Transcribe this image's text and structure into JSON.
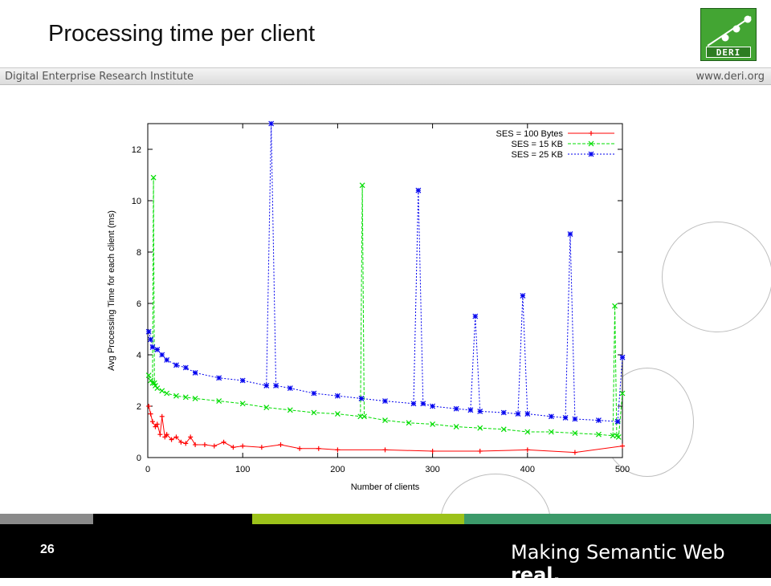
{
  "slide": {
    "title": "Processing time per client",
    "banner_left": "Digital Enterprise Research Institute",
    "banner_right": "www.deri.org",
    "logo_text": "DERI",
    "page_number": "26",
    "slogan_main": "Making Semantic Web ",
    "slogan_bold": "real."
  },
  "colors": {
    "stripe_gray": "#8a8a8a",
    "stripe_black": "#000000",
    "stripe_lime": "#9cc21a",
    "stripe_green": "#3c9a6a",
    "logo_green": "#43a533"
  },
  "chart_data": {
    "type": "line",
    "title": "",
    "xlabel": "Number of clients",
    "ylabel": "Avg Processing Time for each client (ms)",
    "xlim": [
      0,
      500
    ],
    "ylim": [
      0,
      13
    ],
    "xticks": [
      0,
      100,
      200,
      300,
      400,
      500
    ],
    "yticks": [
      0,
      2,
      4,
      6,
      8,
      10,
      12
    ],
    "grid": false,
    "legend_position": "top-right",
    "series": [
      {
        "name": "SES = 100 Bytes",
        "color": "#ff0000",
        "marker": "+",
        "x": [
          1,
          3,
          5,
          8,
          10,
          13,
          15,
          18,
          20,
          25,
          30,
          35,
          40,
          45,
          50,
          60,
          70,
          80,
          90,
          100,
          120,
          140,
          160,
          180,
          200,
          250,
          300,
          350,
          400,
          450,
          500
        ],
        "y": [
          2.0,
          1.7,
          1.4,
          1.2,
          1.3,
          0.9,
          1.6,
          0.8,
          0.9,
          0.7,
          0.8,
          0.6,
          0.55,
          0.8,
          0.5,
          0.5,
          0.45,
          0.6,
          0.4,
          0.45,
          0.4,
          0.5,
          0.35,
          0.35,
          0.3,
          0.3,
          0.25,
          0.25,
          0.3,
          0.2,
          0.45
        ]
      },
      {
        "name": "SES = 15 KB",
        "color": "#00dd00",
        "marker": "x",
        "x": [
          1,
          3,
          5,
          6,
          7,
          8,
          10,
          15,
          20,
          30,
          40,
          50,
          75,
          100,
          125,
          150,
          175,
          200,
          224,
          226,
          228,
          250,
          275,
          300,
          325,
          350,
          375,
          400,
          425,
          450,
          475,
          490,
          492,
          494,
          496,
          500
        ],
        "y": [
          3.2,
          3.0,
          2.9,
          10.9,
          2.9,
          2.8,
          2.7,
          2.6,
          2.5,
          2.4,
          2.35,
          2.3,
          2.2,
          2.1,
          1.95,
          1.85,
          1.75,
          1.7,
          1.6,
          10.6,
          1.6,
          1.45,
          1.35,
          1.3,
          1.2,
          1.15,
          1.1,
          1.0,
          1.0,
          0.95,
          0.9,
          0.85,
          5.9,
          0.85,
          0.8,
          2.5
        ]
      },
      {
        "name": "SES = 25 KB",
        "color": "#0000ee",
        "marker": "*",
        "x": [
          1,
          3,
          5,
          10,
          15,
          20,
          30,
          40,
          50,
          75,
          100,
          125,
          130,
          135,
          150,
          175,
          200,
          225,
          250,
          280,
          285,
          290,
          300,
          325,
          340,
          345,
          350,
          375,
          390,
          395,
          400,
          425,
          440,
          445,
          450,
          475,
          495,
          500
        ],
        "y": [
          4.9,
          4.6,
          4.3,
          4.2,
          4.0,
          3.8,
          3.6,
          3.5,
          3.3,
          3.1,
          3.0,
          2.8,
          13.0,
          2.8,
          2.7,
          2.5,
          2.4,
          2.3,
          2.2,
          2.1,
          10.4,
          2.1,
          2.0,
          1.9,
          1.85,
          5.5,
          1.8,
          1.75,
          1.7,
          6.3,
          1.7,
          1.6,
          1.55,
          8.7,
          1.5,
          1.45,
          1.4,
          3.9
        ]
      }
    ]
  }
}
